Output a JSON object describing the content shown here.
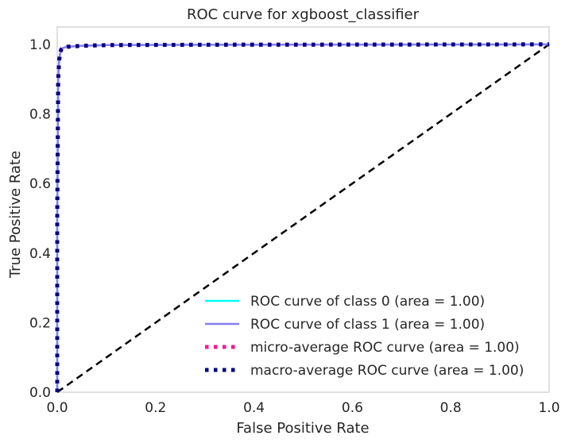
{
  "chart_data": {
    "type": "line",
    "title": "ROC curve for xgboost_classifier",
    "xlabel": "False Positive Rate",
    "ylabel": "True Positive Rate",
    "xlim": [
      0.0,
      1.0
    ],
    "ylim": [
      0.0,
      1.05
    ],
    "x_ticks": [
      "0.0",
      "0.2",
      "0.4",
      "0.6",
      "0.8",
      "1.0"
    ],
    "y_ticks": [
      "0.0",
      "0.2",
      "0.4",
      "0.6",
      "0.8",
      "1.0"
    ],
    "grid": false,
    "legend_position": "lower-right",
    "series": [
      {
        "name": "ROC curve of class 0 (area = 1.00)",
        "color": "#00ffff",
        "style": "solid",
        "x": [
          0.0,
          0.0,
          0.002,
          0.004,
          0.006,
          0.008,
          0.012,
          0.02,
          0.05,
          0.1,
          0.3,
          1.0
        ],
        "y": [
          0.0,
          0.5,
          0.9,
          0.955,
          0.975,
          0.985,
          0.99,
          0.993,
          0.996,
          0.998,
          0.999,
          1.0
        ]
      },
      {
        "name": "ROC curve of class 1 (area = 1.00)",
        "color": "#8b7cf0",
        "style": "solid",
        "x": [
          0.0,
          0.0,
          0.002,
          0.004,
          0.006,
          0.008,
          0.012,
          0.02,
          0.05,
          0.1,
          0.3,
          1.0
        ],
        "y": [
          0.0,
          0.5,
          0.9,
          0.955,
          0.975,
          0.985,
          0.99,
          0.993,
          0.996,
          0.998,
          0.999,
          1.0
        ]
      },
      {
        "name": "micro-average ROC curve (area = 1.00)",
        "color": "#ff1493",
        "style": "dotted",
        "x": [
          0.0,
          0.0,
          0.002,
          0.004,
          0.006,
          0.008,
          0.012,
          0.02,
          0.05,
          0.1,
          0.3,
          1.0
        ],
        "y": [
          0.0,
          0.5,
          0.9,
          0.955,
          0.975,
          0.985,
          0.99,
          0.993,
          0.996,
          0.998,
          0.999,
          1.0
        ]
      },
      {
        "name": "macro-average ROC curve (area = 1.00)",
        "color": "#000080",
        "style": "dotted",
        "x": [
          0.0,
          0.0,
          0.002,
          0.004,
          0.006,
          0.008,
          0.012,
          0.02,
          0.05,
          0.1,
          0.3,
          1.0
        ],
        "y": [
          0.0,
          0.5,
          0.9,
          0.955,
          0.975,
          0.985,
          0.99,
          0.993,
          0.996,
          0.998,
          0.999,
          1.0
        ]
      }
    ],
    "reference_line": {
      "color": "#000000",
      "style": "dashed",
      "x": [
        0.0,
        1.0
      ],
      "y": [
        0.0,
        1.0
      ]
    }
  }
}
